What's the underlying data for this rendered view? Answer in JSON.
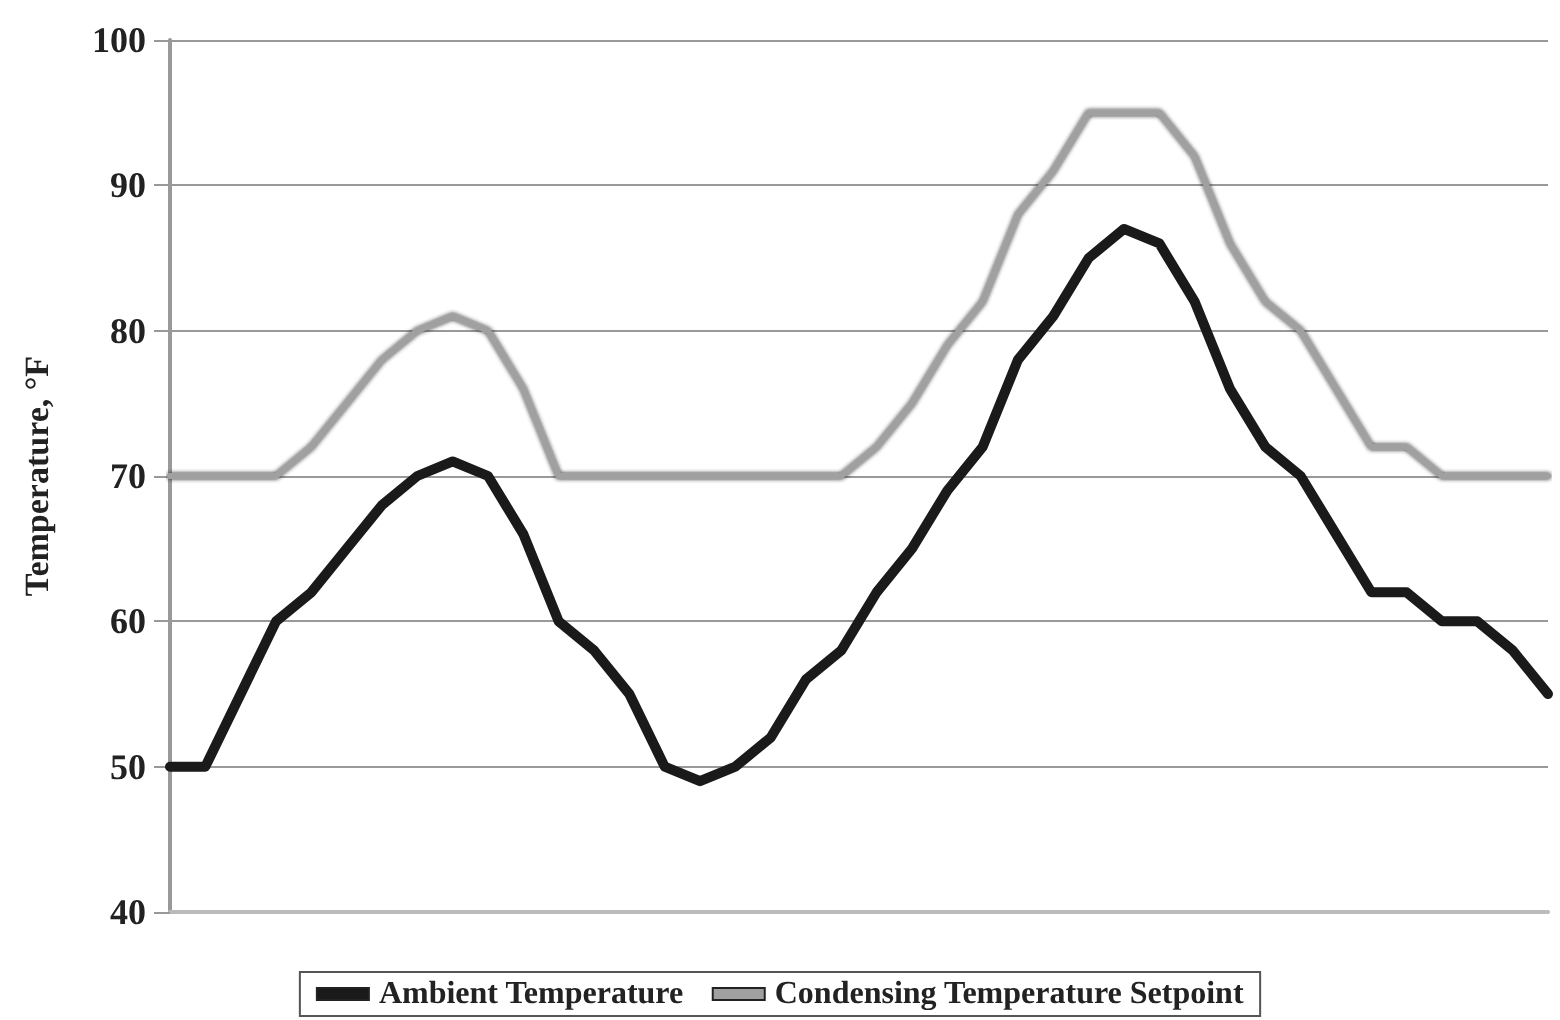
{
  "chart_data": {
    "type": "line",
    "ylabel": "Temperature, °F",
    "categories": [
      null,
      null,
      null,
      null,
      null,
      null,
      null,
      null,
      null,
      null,
      null,
      null,
      null,
      null,
      null,
      null,
      null,
      null,
      null,
      null,
      null,
      null,
      null,
      null,
      null,
      null,
      null,
      null,
      null,
      null,
      null,
      null,
      null,
      null,
      null,
      null,
      null,
      null,
      null,
      null
    ],
    "series": [
      {
        "name": "Ambient Temperature",
        "color": "#1a1a1a",
        "values": [
          50,
          50,
          55,
          60,
          62,
          65,
          68,
          70,
          71,
          70,
          66,
          60,
          58,
          55,
          50,
          49,
          50,
          52,
          56,
          58,
          62,
          65,
          69,
          72,
          78,
          81,
          85,
          87,
          86,
          82,
          76,
          72,
          70,
          66,
          62,
          62,
          60,
          60,
          58,
          55
        ]
      },
      {
        "name": "Condensing Temperature Setpoint",
        "color": "#a0a0a0",
        "values": [
          70,
          70,
          70,
          70,
          72,
          75,
          78,
          80,
          81,
          80,
          76,
          70,
          70,
          70,
          70,
          70,
          70,
          70,
          70,
          70,
          72,
          75,
          79,
          82,
          88,
          91,
          95,
          95,
          95,
          92,
          86,
          82,
          80,
          76,
          72,
          72,
          70,
          70,
          70,
          70
        ]
      }
    ],
    "ylim": [
      40,
      100
    ],
    "yticks": [
      40,
      50,
      60,
      70,
      80,
      90,
      100
    ],
    "grid": "y",
    "legend": "bottom",
    "marker": "none",
    "line_style": "solid"
  }
}
